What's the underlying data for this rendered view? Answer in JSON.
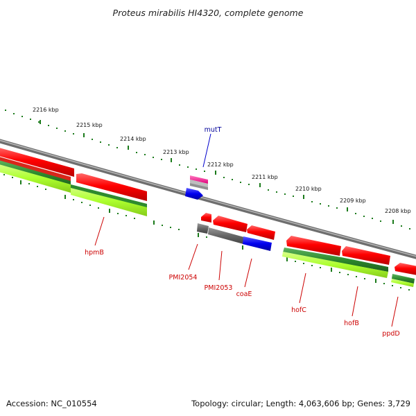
{
  "title": "Proteus mirabilis HI4320, complete genome",
  "footer": {
    "accession": "Accession: NC_010554",
    "summary": "Topology: circular; Length: 4,063,606 bp; Genes: 3,729"
  },
  "scale_labels": [
    "2216 kbp",
    "2215 kbp",
    "2214 kbp",
    "2213 kbp",
    "2212 kbp",
    "2211 kbp",
    "2210 kbp",
    "2209 kbp",
    "2208 kbp"
  ],
  "genes": {
    "mutT": "mutT",
    "hpmB": "hpmB",
    "PMI2054": "PMI2054",
    "PMI2053": "PMI2053",
    "coaE": "coaE",
    "hofC": "hofC",
    "hofB": "hofB",
    "ppdD": "ppdD"
  },
  "colors": {
    "cds": "#ff0000",
    "cds_dark": "#b80000",
    "gene_green": "#2e8b2e",
    "gene_lime": "#adff2f",
    "gray_feature": "#666666",
    "blue_feature": "#0000ee",
    "pink_feature": "#ff1493",
    "backbone": "#888888",
    "tick_green": "#1a7a1a",
    "label_red": "#cc0000",
    "label_blue": "#000099"
  }
}
